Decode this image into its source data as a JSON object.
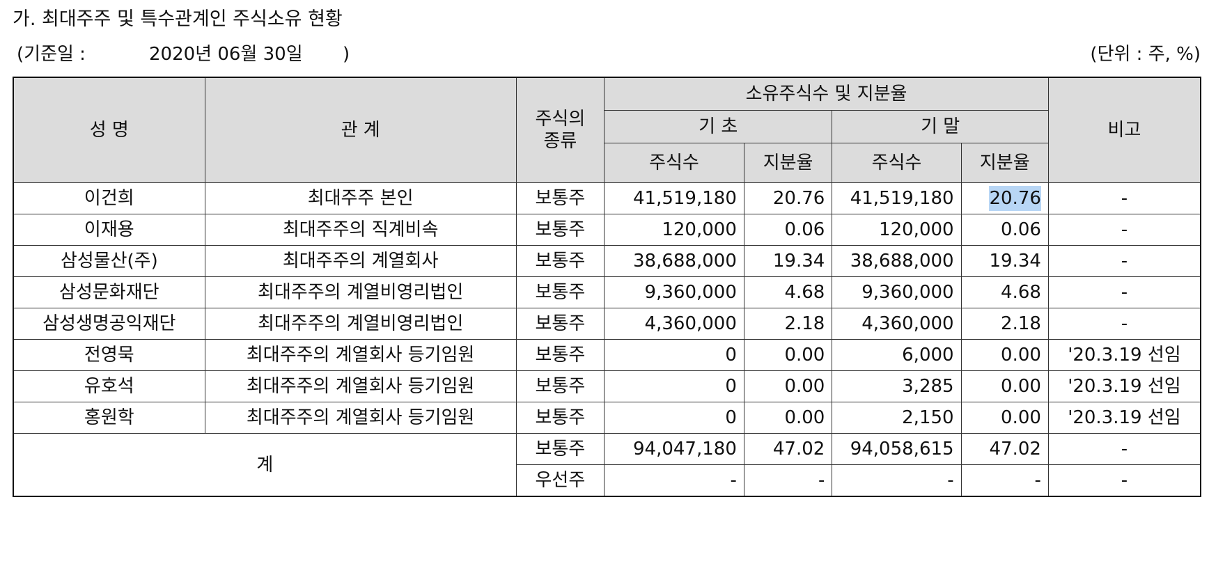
{
  "heading": "가. 최대주주 및 특수관계인 주식소유 현황",
  "base_date": {
    "label": "(기준일 :",
    "date": "2020년 06월 30일",
    "close": ")"
  },
  "unit": "(단위 : 주, %)",
  "table": {
    "headers": {
      "name": "성 명",
      "relation": "관 계",
      "stock_type": "주식의\n종류",
      "ownership": "소유주식수 및 지분율",
      "period_start": "기 초",
      "period_end": "기 말",
      "shares": "주식수",
      "ratio": "지분율",
      "note": "비고"
    },
    "rows": [
      {
        "name": "이건희",
        "relation": "최대주주 본인",
        "type": "보통주",
        "start_shares": "41,519,180",
        "start_ratio": "20.76",
        "end_shares": "41,519,180",
        "end_ratio": "20.76",
        "note": "-"
      },
      {
        "name": "이재용",
        "relation": "최대주주의 직계비속",
        "type": "보통주",
        "start_shares": "120,000",
        "start_ratio": "0.06",
        "end_shares": "120,000",
        "end_ratio": "0.06",
        "note": "-"
      },
      {
        "name": "삼성물산(주)",
        "relation": "최대주주의 계열회사",
        "type": "보통주",
        "start_shares": "38,688,000",
        "start_ratio": "19.34",
        "end_shares": "38,688,000",
        "end_ratio": "19.34",
        "note": "-"
      },
      {
        "name": "삼성문화재단",
        "relation": "최대주주의 계열비영리법인",
        "type": "보통주",
        "start_shares": "9,360,000",
        "start_ratio": "4.68",
        "end_shares": "9,360,000",
        "end_ratio": "4.68",
        "note": "-"
      },
      {
        "name": "삼성생명공익재단",
        "relation": "최대주주의 계열비영리법인",
        "type": "보통주",
        "start_shares": "4,360,000",
        "start_ratio": "2.18",
        "end_shares": "4,360,000",
        "end_ratio": "2.18",
        "note": "-"
      },
      {
        "name": "전영묵",
        "relation": "최대주주의 계열회사 등기임원",
        "type": "보통주",
        "start_shares": "0",
        "start_ratio": "0.00",
        "end_shares": "6,000",
        "end_ratio": "0.00",
        "note": "'20.3.19 선임"
      },
      {
        "name": "유호석",
        "relation": "최대주주의 계열회사 등기임원",
        "type": "보통주",
        "start_shares": "0",
        "start_ratio": "0.00",
        "end_shares": "3,285",
        "end_ratio": "0.00",
        "note": "'20.3.19 선임"
      },
      {
        "name": "홍원학",
        "relation": "최대주주의 계열회사 등기임원",
        "type": "보통주",
        "start_shares": "0",
        "start_ratio": "0.00",
        "end_shares": "2,150",
        "end_ratio": "0.00",
        "note": "'20.3.19 선임"
      }
    ],
    "total": {
      "label": "계",
      "rows": [
        {
          "type": "보통주",
          "start_shares": "94,047,180",
          "start_ratio": "47.02",
          "end_shares": "94,058,615",
          "end_ratio": "47.02",
          "note": "-"
        },
        {
          "type": "우선주",
          "start_shares": "-",
          "start_ratio": "-",
          "end_shares": "-",
          "end_ratio": "-",
          "note": "-"
        }
      ]
    }
  }
}
